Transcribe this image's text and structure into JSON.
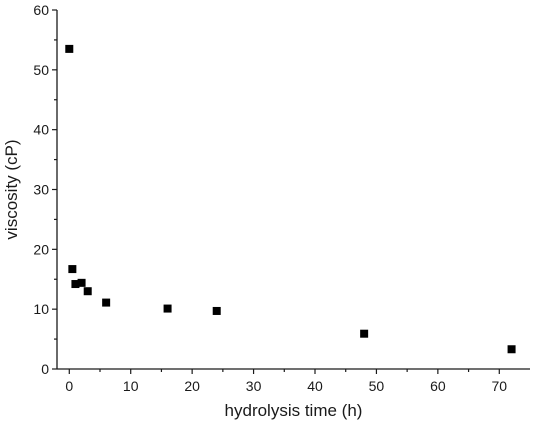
{
  "chart_data": {
    "type": "scatter",
    "title": "",
    "xlabel": "hydrolysis time (h)",
    "ylabel": "viscosity (cP)",
    "xlim": [
      -2,
      75
    ],
    "ylim": [
      0,
      60
    ],
    "x_ticks": [
      0,
      10,
      20,
      30,
      40,
      50,
      60,
      70
    ],
    "y_ticks": [
      0,
      10,
      20,
      30,
      40,
      50,
      60
    ],
    "grid": false,
    "marker": "square",
    "marker_color": "#000000",
    "series": [
      {
        "x": [
          0,
          0.5,
          1,
          2,
          3,
          6,
          16,
          24,
          48,
          72
        ],
        "y": [
          53.5,
          16.7,
          14.2,
          14.4,
          13.0,
          11.1,
          10.1,
          9.7,
          5.9,
          3.3
        ]
      }
    ]
  }
}
